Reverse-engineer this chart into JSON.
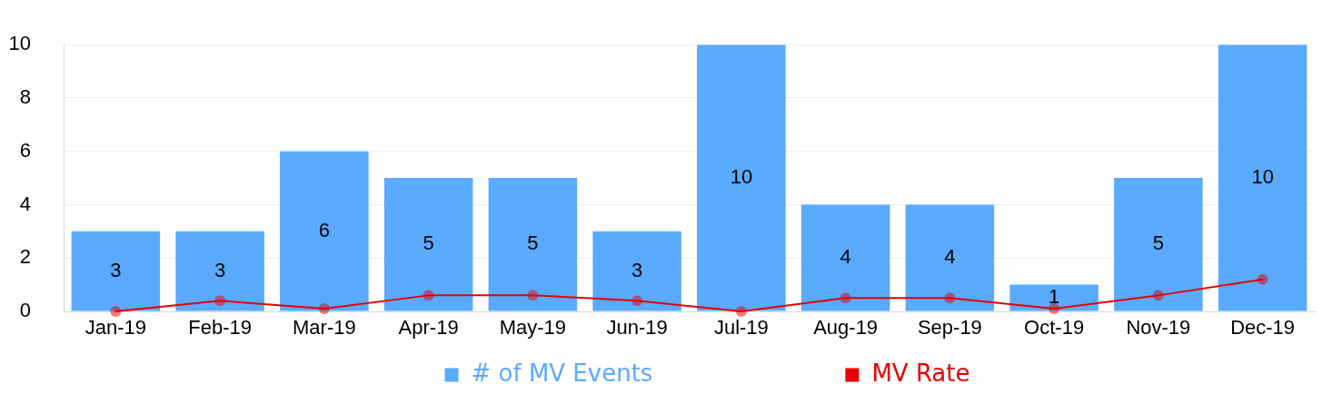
{
  "chart_data": {
    "type": "bar",
    "categories": [
      "Jan-19",
      "Feb-19",
      "Mar-19",
      "Apr-19",
      "May-19",
      "Jun-19",
      "Jul-19",
      "Aug-19",
      "Sep-19",
      "Oct-19",
      "Nov-19",
      "Dec-19"
    ],
    "series": [
      {
        "name": "# of MV Events",
        "color": "#5aaaff",
        "values": [
          3,
          3,
          6,
          5,
          5,
          3,
          10,
          4,
          4,
          1,
          5,
          10
        ],
        "value_labels": [
          "3",
          "3",
          "6",
          "5",
          "5",
          "3",
          "10",
          "4",
          "4",
          "1",
          "5",
          "10"
        ]
      },
      {
        "name": "MV Rate",
        "type": "line",
        "color": "#e60000",
        "marker": "circle",
        "values": [
          0,
          0.4,
          0.1,
          0.6,
          0.6,
          0.4,
          0,
          0.5,
          0.5,
          0.1,
          0.6,
          1.2
        ]
      }
    ],
    "ylim": [
      0,
      10
    ],
    "yticks": [
      0,
      2,
      4,
      6,
      8,
      10
    ],
    "grid": "y",
    "legend": "bottom"
  }
}
